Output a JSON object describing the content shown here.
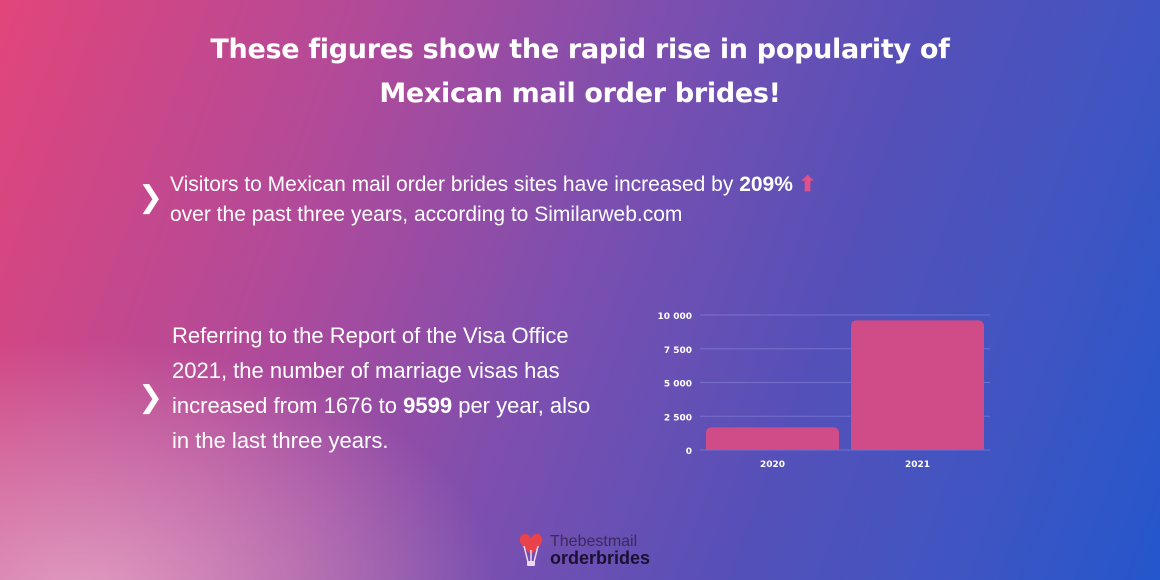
{
  "title": {
    "line1": "These figures show the rapid rise in popularity of",
    "line2": "Mexican mail order brides!"
  },
  "bullets": [
    {
      "icon": "chevron-right-icon",
      "text_before": "Visitors to Mexican mail order brides sites have increased by ",
      "bold": "209%",
      "arrow_icon": "arrow-up-icon",
      "arrow": "⬆",
      "text_after": "over the past three years, according to Similarweb.com"
    },
    {
      "icon": "chevron-right-icon",
      "text_before": "Referring to the Report of the Visa Office 2021, the number of marriage visas has increased from 1676 to ",
      "bold": "9599",
      "text_after": " per year, also in the last three years."
    }
  ],
  "chart_data": {
    "type": "bar",
    "categories": [
      "2020",
      "2021"
    ],
    "values": [
      1676,
      9599
    ],
    "ylim": [
      0,
      10000
    ],
    "yticks": [
      0,
      2500,
      5000,
      7500,
      10000
    ],
    "ytick_labels": [
      "0",
      "2 500",
      "5 000",
      "7 500",
      "10 000"
    ],
    "grid": true,
    "bar_color": "#d04c88"
  },
  "logo": {
    "line1": "Thebestmail",
    "line2": "orderbrides",
    "icon": "heart-balloon-icon",
    "heart_color": "#e8424a"
  }
}
